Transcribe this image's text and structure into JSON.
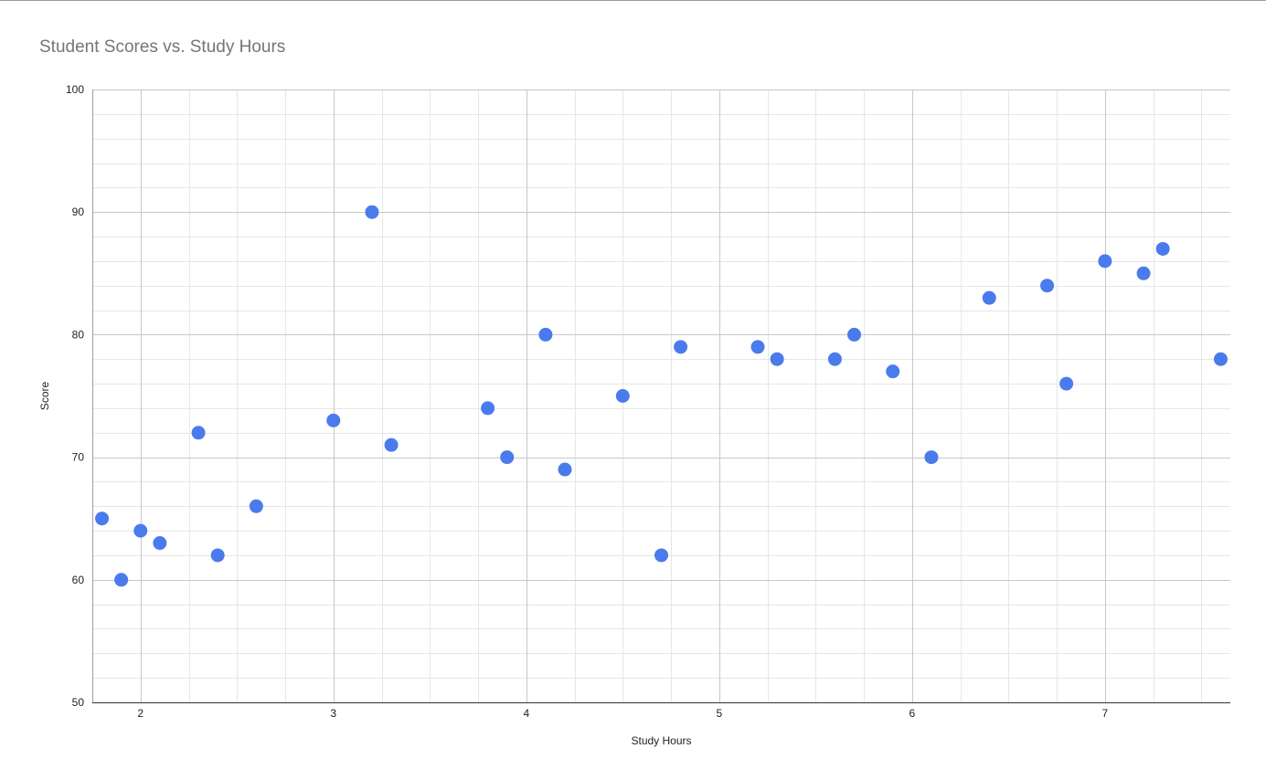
{
  "chart_data": {
    "type": "scatter",
    "title": "Student Scores vs. Study Hours",
    "xlabel": "Study Hours",
    "ylabel": "Score",
    "xlim": [
      1.75,
      7.65
    ],
    "ylim": [
      50,
      100
    ],
    "x_ticks": [
      2,
      3,
      4,
      5,
      6,
      7
    ],
    "y_ticks": [
      50,
      60,
      70,
      80,
      90,
      100
    ],
    "x_minor_step": 0.25,
    "y_minor_step": 2,
    "grid": true,
    "legend": "none",
    "point_color": "#4a7bec",
    "series": [
      {
        "points": [
          {
            "x": 1.8,
            "y": 65
          },
          {
            "x": 1.9,
            "y": 60
          },
          {
            "x": 2.0,
            "y": 64
          },
          {
            "x": 2.1,
            "y": 63
          },
          {
            "x": 2.3,
            "y": 72
          },
          {
            "x": 2.4,
            "y": 62
          },
          {
            "x": 2.6,
            "y": 66
          },
          {
            "x": 3.0,
            "y": 73
          },
          {
            "x": 3.2,
            "y": 90
          },
          {
            "x": 3.3,
            "y": 71
          },
          {
            "x": 3.8,
            "y": 74
          },
          {
            "x": 3.9,
            "y": 70
          },
          {
            "x": 4.1,
            "y": 80
          },
          {
            "x": 4.2,
            "y": 69
          },
          {
            "x": 4.5,
            "y": 75
          },
          {
            "x": 4.7,
            "y": 62
          },
          {
            "x": 4.8,
            "y": 79
          },
          {
            "x": 5.2,
            "y": 79
          },
          {
            "x": 5.3,
            "y": 78
          },
          {
            "x": 5.6,
            "y": 78
          },
          {
            "x": 5.7,
            "y": 80
          },
          {
            "x": 5.9,
            "y": 77
          },
          {
            "x": 6.1,
            "y": 70
          },
          {
            "x": 6.4,
            "y": 83
          },
          {
            "x": 6.7,
            "y": 84
          },
          {
            "x": 6.8,
            "y": 76
          },
          {
            "x": 7.0,
            "y": 86
          },
          {
            "x": 7.2,
            "y": 85
          },
          {
            "x": 7.3,
            "y": 87
          },
          {
            "x": 7.6,
            "y": 78
          }
        ]
      }
    ]
  }
}
